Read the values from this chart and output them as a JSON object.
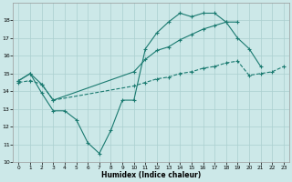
{
  "xlabel": "Humidex (Indice chaleur)",
  "background_color": "#cce8e8",
  "grid_color": "#aacfcf",
  "line_color": "#1a7a70",
  "xlim": [
    -0.5,
    23.5
  ],
  "ylim": [
    10,
    19
  ],
  "yticks": [
    10,
    11,
    12,
    13,
    14,
    15,
    16,
    17,
    18
  ],
  "xticks": [
    0,
    1,
    2,
    3,
    4,
    5,
    6,
    7,
    8,
    9,
    10,
    11,
    12,
    13,
    14,
    15,
    16,
    17,
    18,
    19,
    20,
    21,
    22,
    23
  ],
  "line1_x": [
    0,
    1,
    2,
    3,
    4,
    5,
    6,
    7,
    8,
    9,
    10,
    11,
    12,
    13,
    14,
    15,
    16,
    17,
    18,
    19,
    20,
    21
  ],
  "line1_y": [
    14.6,
    15.0,
    13.9,
    12.9,
    12.9,
    12.4,
    11.1,
    10.5,
    11.8,
    13.5,
    13.5,
    16.4,
    17.3,
    17.9,
    18.4,
    18.2,
    18.4,
    18.4,
    17.9,
    17.0,
    16.4,
    15.4
  ],
  "line2_x": [
    0,
    1,
    2,
    3,
    10,
    11,
    12,
    13,
    14,
    15,
    16,
    17,
    18,
    19
  ],
  "line2_y": [
    14.6,
    15.0,
    14.4,
    13.5,
    15.1,
    15.8,
    16.3,
    16.5,
    16.9,
    17.2,
    17.5,
    17.7,
    17.9,
    17.9
  ],
  "line3_x": [
    0,
    1,
    2,
    3,
    10,
    11,
    12,
    13,
    14,
    15,
    16,
    17,
    18,
    19,
    20,
    21,
    22,
    23
  ],
  "line3_y": [
    14.5,
    14.6,
    14.4,
    13.5,
    14.3,
    14.5,
    14.7,
    14.8,
    15.0,
    15.1,
    15.3,
    15.4,
    15.6,
    15.7,
    14.9,
    15.0,
    15.1,
    15.4
  ]
}
